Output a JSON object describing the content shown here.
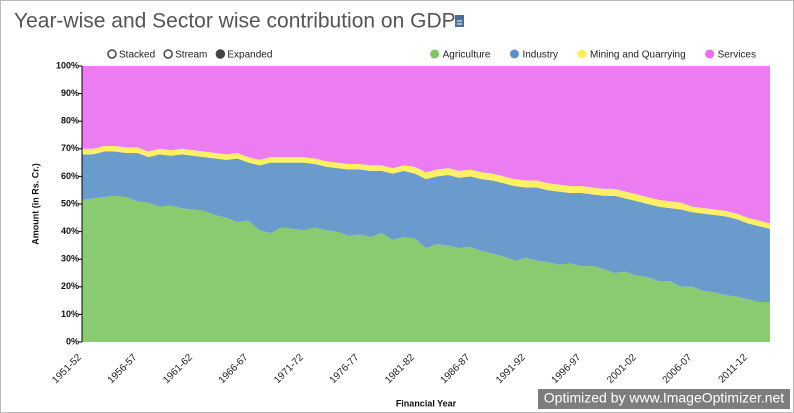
{
  "chart_data": {
    "type": "stacked_area",
    "title": "Year-wise and Sector wise contribution on GDP",
    "controls": [
      "Stacked",
      "Stream",
      "Expanded"
    ],
    "selected_control": "Expanded",
    "x_label": "Financial Year",
    "y_label": "Amount (in Rs. Cr.)",
    "watermark": "Optimized by www.ImageOptimizer.net",
    "categories": [
      "1951-52",
      null,
      null,
      null,
      null,
      "1956-57",
      null,
      null,
      null,
      null,
      "1961-62",
      null,
      null,
      null,
      null,
      "1966-67",
      null,
      null,
      null,
      null,
      "1971-72",
      null,
      null,
      null,
      null,
      "1976-77",
      null,
      null,
      null,
      null,
      "1981-82",
      null,
      null,
      null,
      null,
      "1986-87",
      null,
      null,
      null,
      null,
      "1991-92",
      null,
      null,
      null,
      null,
      "1996-97",
      null,
      null,
      null,
      null,
      "2001-02",
      null,
      null,
      null,
      null,
      "2006-07",
      null,
      null,
      null,
      null,
      "2011-12",
      null,
      null
    ],
    "series": [
      {
        "name": "Agriculture",
        "color": "#7dc462",
        "values": [
          51.5,
          52,
          52.5,
          53,
          52.5,
          51,
          50.5,
          49,
          49.5,
          48.5,
          48,
          47.5,
          46,
          45,
          43.5,
          44,
          40.5,
          39.5,
          41.5,
          41,
          40.5,
          41.5,
          40.5,
          40,
          38.5,
          39,
          38,
          39.5,
          37,
          38,
          37.5,
          34,
          35.5,
          35,
          34,
          34.5,
          33,
          32,
          31,
          29.5,
          30.5,
          29.5,
          29,
          28,
          28.5,
          27.5,
          27.5,
          26.5,
          25,
          25.5,
          24,
          23.5,
          22,
          22,
          20,
          20,
          18.5,
          18,
          17,
          16.5,
          15.5,
          14.5,
          14.5
        ]
      },
      {
        "name": "Industry",
        "color": "#5b8fc7",
        "values": [
          16.5,
          16,
          16.5,
          16,
          16,
          17.5,
          16.5,
          19,
          18,
          19.5,
          19.5,
          19.5,
          20.5,
          21,
          23,
          21,
          23.5,
          25.5,
          23.5,
          24,
          24.5,
          23,
          23,
          23,
          24,
          23.5,
          24,
          22.5,
          24,
          24,
          23.5,
          25,
          24.5,
          25.5,
          25.5,
          25.5,
          26,
          26.5,
          26.5,
          27,
          25.5,
          26.5,
          26,
          26.5,
          25.5,
          26.5,
          26,
          26.5,
          28,
          26.5,
          27,
          26.5,
          27,
          26.5,
          28,
          27,
          28,
          28,
          28.5,
          28,
          27.5,
          27.5,
          26.5
        ]
      },
      {
        "name": "Mining and Quarrying",
        "color": "#ffee55",
        "values": [
          2,
          2,
          2,
          2,
          2,
          2,
          2,
          2,
          2,
          2,
          2,
          2,
          2,
          2,
          2,
          2,
          2,
          2,
          2,
          2,
          2,
          2,
          2,
          2,
          2,
          2,
          2,
          2,
          2,
          2,
          2.5,
          2.5,
          2.5,
          2.5,
          2.5,
          2.5,
          2.5,
          2.5,
          2.5,
          2.5,
          2.5,
          2.5,
          2.5,
          2.5,
          2.5,
          2.5,
          2.5,
          2.5,
          2.5,
          2.5,
          2.5,
          2.5,
          2.5,
          2.5,
          2.5,
          2,
          2,
          2,
          2,
          2,
          2,
          2,
          2
        ]
      },
      {
        "name": "Services",
        "color": "#e96ef0",
        "values": [
          30,
          30,
          29,
          29,
          29.5,
          29.5,
          31,
          30,
          30.5,
          30,
          30.5,
          31,
          31.5,
          32,
          31.5,
          33,
          34,
          33,
          33,
          33,
          33,
          33.5,
          34.5,
          35,
          35.5,
          35.5,
          36,
          36,
          37,
          36,
          36.5,
          38.5,
          37.5,
          37,
          38,
          37.5,
          38.5,
          39,
          40,
          41,
          41.5,
          41.5,
          42.5,
          43,
          43.5,
          43.5,
          44,
          44.5,
          44.5,
          45.5,
          46.5,
          47.5,
          48.5,
          49,
          49.5,
          51,
          51.5,
          52,
          52.5,
          53.5,
          55,
          56,
          57
        ]
      }
    ],
    "ylim": [
      0,
      100
    ],
    "yticks": [
      {
        "value": 0,
        "label": "0%"
      },
      {
        "value": 10,
        "label": "10%"
      },
      {
        "value": 20,
        "label": "20%"
      },
      {
        "value": 30,
        "label": "30%"
      },
      {
        "value": 40,
        "label": "40%"
      },
      {
        "value": 50,
        "label": "50%"
      },
      {
        "value": 60,
        "label": "60%"
      },
      {
        "value": 70,
        "label": "70%"
      },
      {
        "value": 80,
        "label": "80%"
      },
      {
        "value": 90,
        "label": "90%"
      },
      {
        "value": 100,
        "label": "100%"
      }
    ]
  }
}
